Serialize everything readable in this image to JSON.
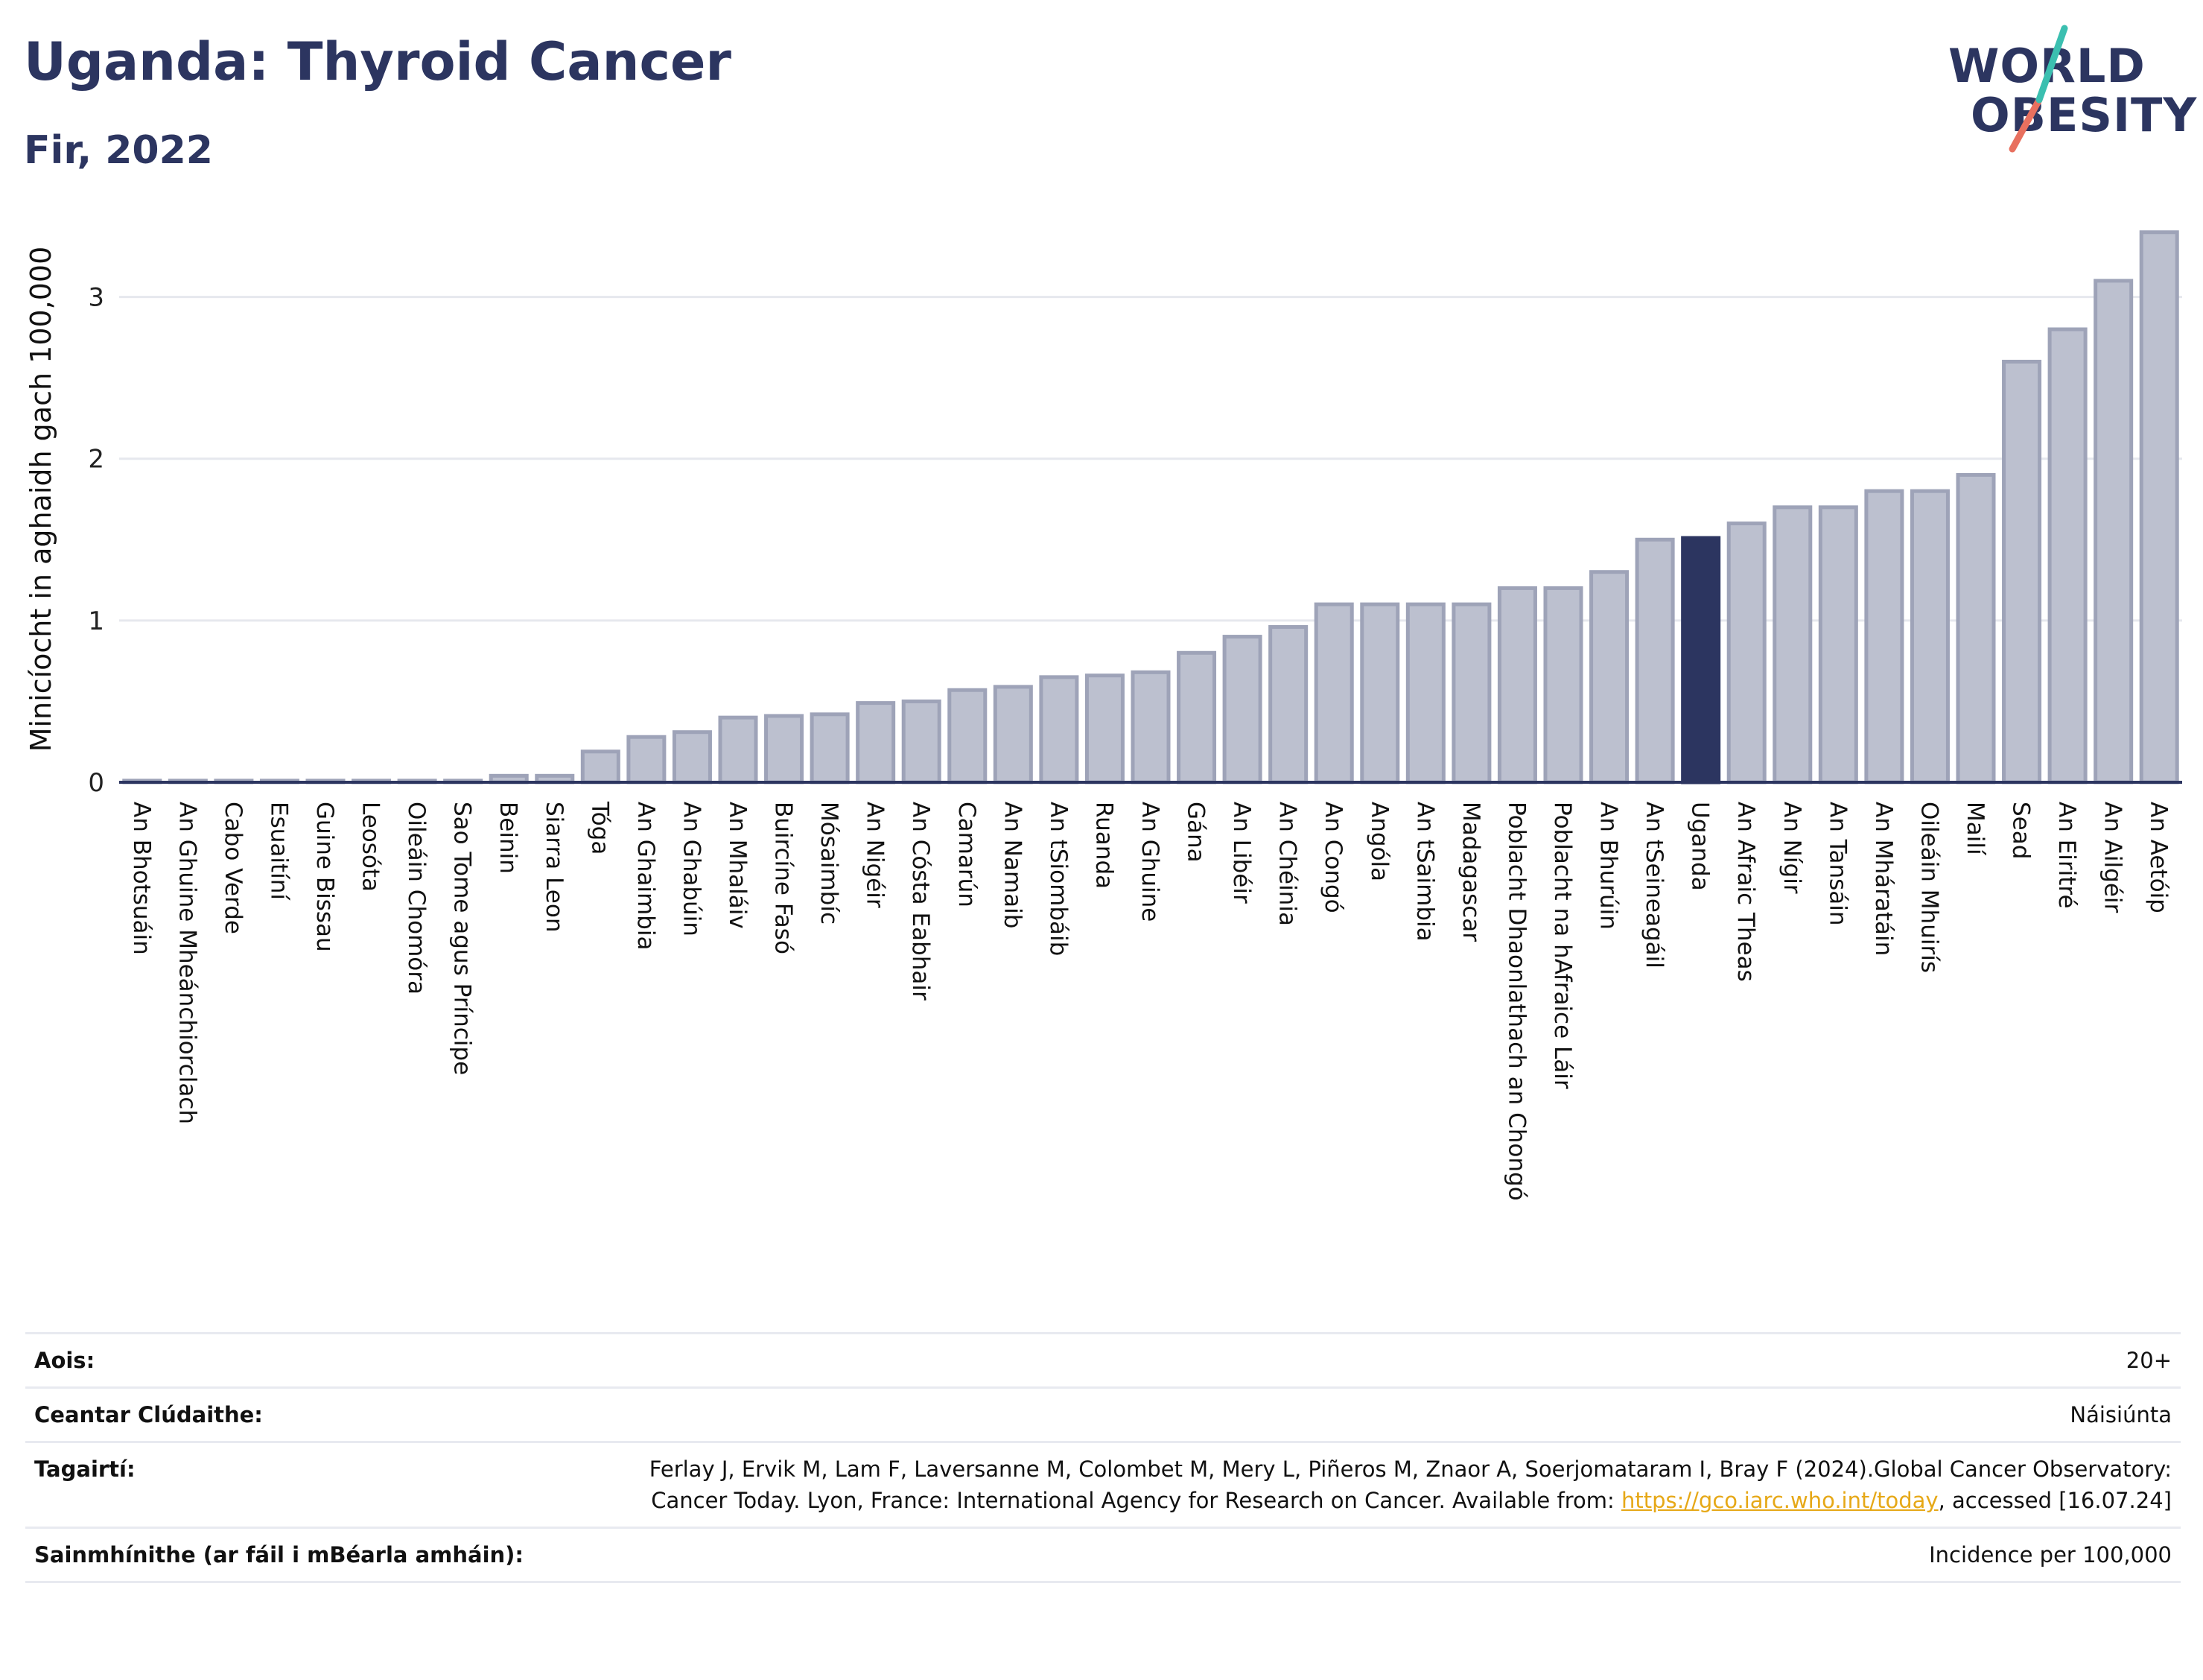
{
  "header": {
    "title": "Uganda: Thyroid Cancer",
    "subtitle": "Fir, 2022"
  },
  "logo": {
    "line1": "WORLD",
    "line2": "OBESITY",
    "accent_colors": [
      "#3bbfb0",
      "#e8705f"
    ]
  },
  "chart_data": {
    "type": "bar",
    "ylabel": "Minicíocht in aghaidh gach 100,000",
    "ylim": [
      0,
      3.5
    ],
    "yticks": [
      0,
      1,
      2,
      3
    ],
    "grid": true,
    "highlight": "Uganda",
    "colors": {
      "bar": "#bcc0cf",
      "bar_stroke": "#9ea3b8",
      "highlight": "#2c3560",
      "axis": "#2c3560",
      "grid": "#e6e8ee"
    },
    "categories": [
      "An Bhotsuáin",
      "An Ghuine Mheánchiorclach",
      "Cabo Verde",
      "Esuaitíní",
      "Guine Bissau",
      "Leosóta",
      "Oileáin Chomóra",
      "Sao Tome agus Príncipe",
      "Beinin",
      "Siarra Leon",
      "Tóga",
      "An Ghaimbia",
      "An Ghabúin",
      "An Mhaláiv",
      "Buircíne Fasó",
      "Mósaimbíc",
      "An Nigéir",
      "An Cósta Eabhair",
      "Camarún",
      "An Namaib",
      "An tSiombáib",
      "Ruanda",
      "An Ghuine",
      "Gána",
      "An Libéir",
      "An Chéinia",
      "An Congó",
      "Angóla",
      "An tSaimbia",
      "Madagascar",
      "Poblacht Dhaonlathach an Chongó",
      "Poblacht na hAfraice Láir",
      "An Bhurúin",
      "An tSeineagáil",
      "Uganda",
      "An Afraic Theas",
      "An Nígir",
      "An Tansáin",
      "An Mháratáin",
      "Oileáin Mhuirís",
      "Mailí",
      "Sead",
      "An Eiritré",
      "An Ailgéir",
      "An Aetóip"
    ],
    "values": [
      0.01,
      0.01,
      0.01,
      0.01,
      0.01,
      0.01,
      0.01,
      0.01,
      0.04,
      0.04,
      0.19,
      0.28,
      0.31,
      0.4,
      0.41,
      0.42,
      0.49,
      0.5,
      0.57,
      0.59,
      0.65,
      0.66,
      0.68,
      0.8,
      0.9,
      0.96,
      1.1,
      1.1,
      1.1,
      1.1,
      1.2,
      1.2,
      1.3,
      1.5,
      1.51,
      1.6,
      1.7,
      1.7,
      1.8,
      1.8,
      1.9,
      2.6,
      2.8,
      3.1,
      3.4
    ]
  },
  "info": [
    {
      "label": "Aois:",
      "value": "20+"
    },
    {
      "label": "Ceantar Clúdaithe:",
      "value": "Náisiúnta"
    },
    {
      "label": "Tagairtí:",
      "value_before": "Ferlay J, Ervik M, Lam F, Laversanne M, Colombet M, Mery L, Piñeros M, Znaor A, Soerjomataram I, Bray F (2024).Global Cancer Observatory: Cancer Today. Lyon, France: International Agency for Research on Cancer. Available from: ",
      "link": "https://gco.iarc.who.int/today",
      "value_after": ", accessed [16.07.24]"
    },
    {
      "label": "Sainmhínithe (ar fáil i mBéarla amháin):",
      "value": "Incidence per 100,000"
    }
  ]
}
